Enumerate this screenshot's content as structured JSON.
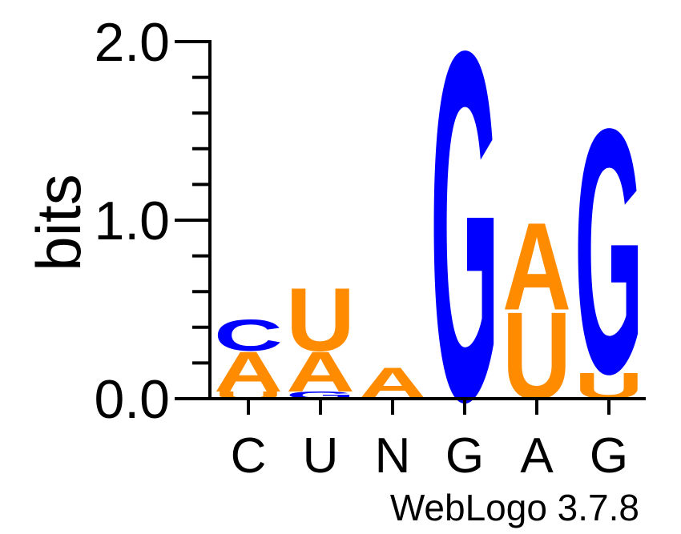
{
  "colors": {
    "A": "#ff8c00",
    "U": "#ff8c00",
    "C": "#0000ff",
    "G": "#0000ff",
    "axis": "#000000"
  },
  "chart_data": {
    "type": "sequence-logo",
    "title": "",
    "ylabel": "bits",
    "xlabel": "",
    "ylim": [
      0,
      2.0
    ],
    "y_tick_labels": [
      "0.0",
      "1.0",
      "2.0"
    ],
    "minor_tick_step": 0.2,
    "positions": [
      {
        "consensus": "C",
        "stack": [
          {
            "letter": "U",
            "bits": 0.04
          },
          {
            "letter": "A",
            "bits": 0.23
          },
          {
            "letter": "C",
            "bits": 0.18
          }
        ]
      },
      {
        "consensus": "U",
        "stack": [
          {
            "letter": "G",
            "bits": 0.04
          },
          {
            "letter": "A",
            "bits": 0.23
          },
          {
            "letter": "U",
            "bits": 0.36
          }
        ]
      },
      {
        "consensus": "N",
        "stack": [
          {
            "letter": "A",
            "bits": 0.18
          }
        ]
      },
      {
        "consensus": "G",
        "stack": [
          {
            "letter": "G",
            "bits": 2.0
          }
        ]
      },
      {
        "consensus": "A",
        "stack": [
          {
            "letter": "U",
            "bits": 0.5
          },
          {
            "letter": "A",
            "bits": 0.5
          }
        ]
      },
      {
        "consensus": "G",
        "stack": [
          {
            "letter": "U",
            "bits": 0.15
          },
          {
            "letter": "G",
            "bits": 1.4
          }
        ]
      }
    ],
    "footer": "WebLogo 3.7.8"
  }
}
